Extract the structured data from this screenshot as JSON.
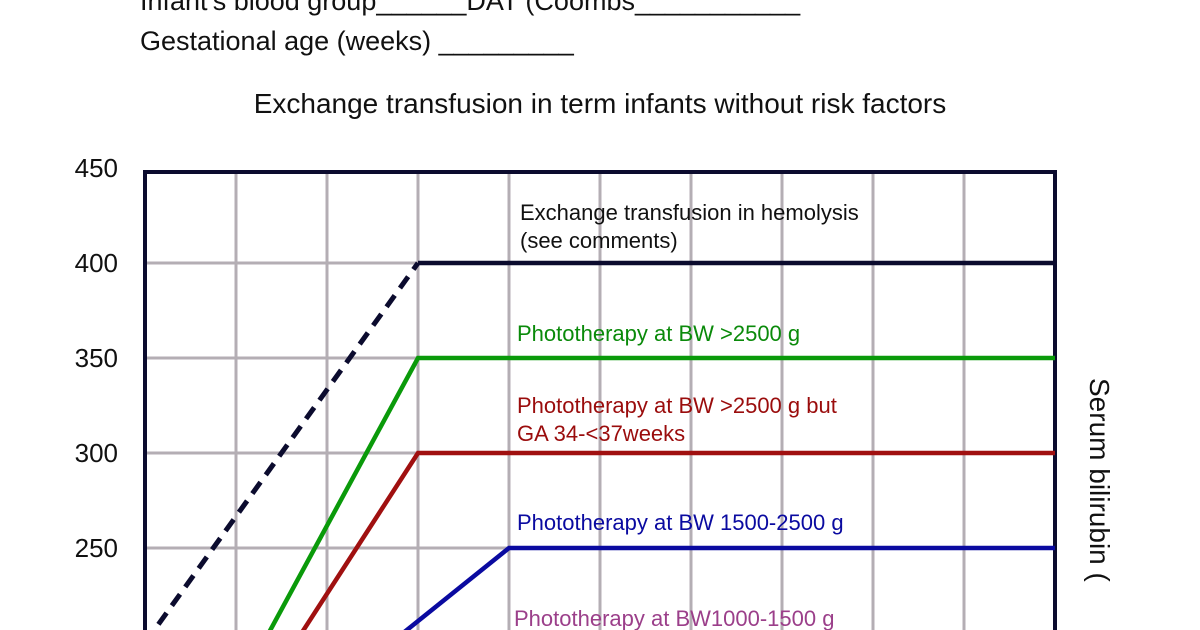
{
  "form": {
    "line1": "Infant's blood group______DAT (Coombs___________",
    "line2": "Gestational age (weeks) _________"
  },
  "chart_data": {
    "type": "line",
    "title": "Exchange transfusion in term infants without risk factors",
    "ylabel": "Serum bilirubin (",
    "xlabel": "",
    "ylim": [
      200,
      450
    ],
    "xlim": [
      0,
      10
    ],
    "yticks": [
      250,
      300,
      350,
      400,
      450
    ],
    "xgrid_count": 10,
    "grid": true,
    "series": [
      {
        "key": "exchange",
        "color": "#0b0b2e",
        "dashed_segment": [
          0,
          1
        ],
        "x": [
          0,
          3,
          10
        ],
        "y": [
          200,
          400,
          400
        ],
        "label": [
          "Exchange transfusion in hemolysis",
          "(see comments)"
        ],
        "label_color": "#111111"
      },
      {
        "key": "photo-2500",
        "color": "#0a9a0a",
        "x": [
          1.3,
          3,
          10
        ],
        "y": [
          200,
          350,
          350
        ],
        "label": [
          "Phototherapy at BW >2500 g"
        ],
        "label_color": "#0a8a0a"
      },
      {
        "key": "photo-2500-ga",
        "color": "#a01010",
        "x": [
          1.65,
          3,
          10
        ],
        "y": [
          200,
          300,
          300
        ],
        "label": [
          "Phototherapy at BW >2500 g but",
          "GA 34-<37weeks"
        ],
        "label_color": "#9a0c0c"
      },
      {
        "key": "photo-1500-2500",
        "color": "#0a0aa0",
        "x": [
          2.7,
          4,
          10
        ],
        "y": [
          200,
          250,
          250
        ],
        "label": [
          "Phototherapy at BW 1500-2500 g"
        ],
        "label_color": "#0a0aa0"
      },
      {
        "key": "photo-1000-1500",
        "color": "#9b3f8a",
        "x": [],
        "y": [],
        "label": [
          "Phototherapy at BW1000-1500 g"
        ],
        "label_color": "#9b3f8a"
      }
    ]
  },
  "colors": {
    "grid": "#b4aeb4",
    "frame": "#0b0b2e"
  }
}
